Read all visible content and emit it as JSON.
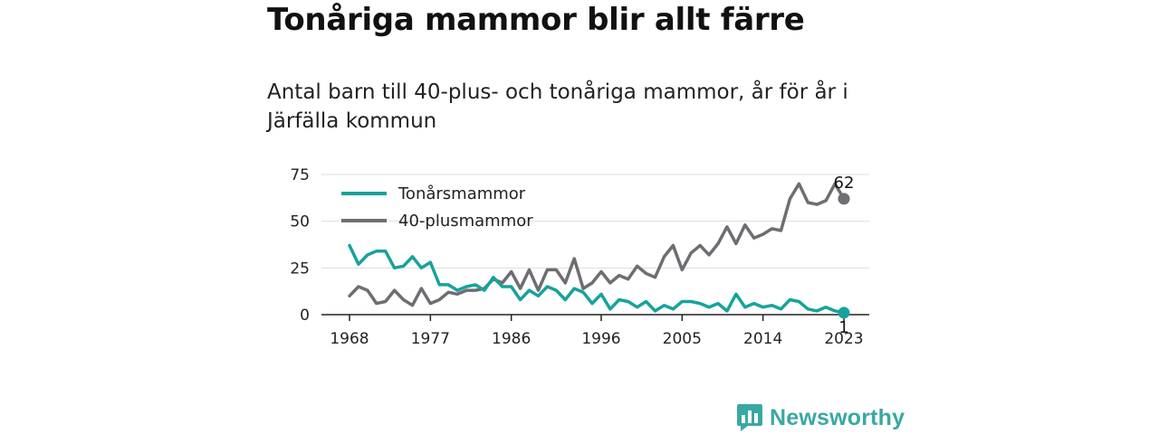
{
  "title": "Tonåriga mammor blir allt färre",
  "subtitle": "Antal barn till 40-plus- och tonåriga mammor, år för år i Järfälla kommun",
  "brand": {
    "name": "Newsworthy"
  },
  "chart_data": {
    "type": "line",
    "x": [
      1968,
      1969,
      1970,
      1971,
      1972,
      1973,
      1974,
      1975,
      1976,
      1977,
      1978,
      1979,
      1980,
      1981,
      1982,
      1983,
      1984,
      1985,
      1986,
      1987,
      1988,
      1989,
      1990,
      1991,
      1992,
      1993,
      1994,
      1995,
      1996,
      1997,
      1998,
      1999,
      2000,
      2001,
      2002,
      2003,
      2004,
      2005,
      2006,
      2007,
      2008,
      2009,
      2010,
      2011,
      2012,
      2013,
      2014,
      2015,
      2016,
      2017,
      2018,
      2019,
      2020,
      2021,
      2022,
      2023
    ],
    "series": [
      {
        "name": "Tonårsmammor",
        "color": "#16a39b",
        "values": [
          37,
          27,
          32,
          34,
          34,
          25,
          26,
          31,
          25,
          28,
          16,
          16,
          13,
          15,
          16,
          13,
          20,
          15,
          15,
          8,
          13,
          10,
          15,
          13,
          8,
          14,
          12,
          6,
          11,
          3,
          8,
          7,
          4,
          7,
          2,
          5,
          3,
          7,
          7,
          6,
          4,
          6,
          2,
          11,
          4,
          6,
          4,
          5,
          3,
          8,
          7,
          3,
          2,
          4,
          2,
          1
        ]
      },
      {
        "name": "40-plusmammor",
        "color": "#6e6d72",
        "values": [
          10,
          15,
          13,
          6,
          7,
          13,
          8,
          5,
          14,
          6,
          8,
          12,
          11,
          13,
          13,
          14,
          19,
          17,
          23,
          14,
          24,
          13,
          24,
          24,
          17,
          30,
          14,
          17,
          23,
          17,
          21,
          19,
          26,
          22,
          20,
          31,
          37,
          24,
          33,
          37,
          32,
          38,
          47,
          38,
          48,
          41,
          43,
          46,
          45,
          62,
          70,
          60,
          59,
          61,
          70,
          62
        ]
      }
    ],
    "xticks": [
      1968,
      1977,
      1986,
      1996,
      2005,
      2014,
      2023
    ],
    "yticks": [
      0,
      25,
      50,
      75
    ],
    "ylim": [
      0,
      75
    ],
    "end_labels": [
      "62",
      "1"
    ],
    "grid": true,
    "legend_position": "top-left"
  }
}
